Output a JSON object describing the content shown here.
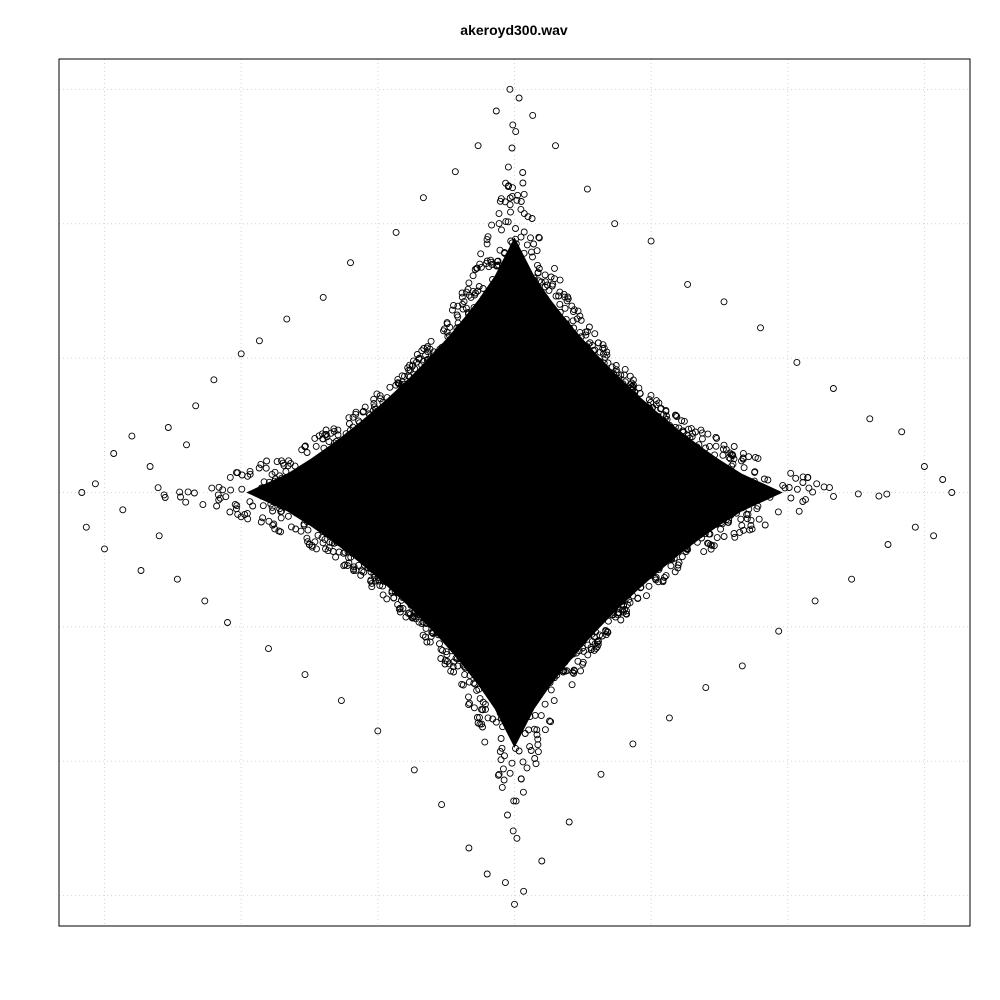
{
  "chart_data": {
    "type": "scatter",
    "title": "akeroyd300.wav",
    "xlabel": "",
    "ylabel": "",
    "xlim": [
      -1.0,
      1.0
    ],
    "ylim": [
      -1.0,
      1.0
    ],
    "grid": true,
    "grid_x": [
      -0.9,
      -0.6,
      -0.3,
      0.0,
      0.3,
      0.6,
      0.9
    ],
    "grid_y": [
      -0.93,
      -0.62,
      -0.31,
      0.0,
      0.31,
      0.62,
      0.93
    ],
    "marker": "open-circle",
    "series": [
      {
        "points": [
          [
            -0.94,
            -0.08
          ],
          [
            -0.92,
            0.02
          ],
          [
            -0.9,
            -0.13
          ],
          [
            -0.88,
            0.09
          ],
          [
            -0.86,
            -0.04
          ],
          [
            -0.84,
            0.13
          ],
          [
            -0.82,
            -0.18
          ],
          [
            -0.8,
            0.06
          ],
          [
            -0.78,
            -0.1
          ],
          [
            -0.76,
            0.15
          ],
          [
            -0.74,
            -0.2
          ],
          [
            -0.72,
            0.11
          ],
          [
            -0.7,
            0.2
          ],
          [
            -0.68,
            -0.25
          ],
          [
            -0.66,
            0.26
          ],
          [
            -0.63,
            -0.3
          ],
          [
            -0.6,
            0.32
          ],
          [
            -0.56,
            0.35
          ],
          [
            -0.54,
            -0.36
          ],
          [
            -0.5,
            0.4
          ],
          [
            -0.46,
            -0.42
          ],
          [
            -0.42,
            0.45
          ],
          [
            -0.38,
            -0.48
          ],
          [
            -0.36,
            0.53
          ],
          [
            -0.3,
            -0.55
          ],
          [
            -0.26,
            0.6
          ],
          [
            -0.22,
            -0.64
          ],
          [
            -0.2,
            0.68
          ],
          [
            -0.16,
            -0.72
          ],
          [
            -0.13,
            0.74
          ],
          [
            -0.1,
            -0.82
          ],
          [
            -0.08,
            0.8
          ],
          [
            -0.06,
            -0.88
          ],
          [
            -0.04,
            0.88
          ],
          [
            -0.02,
            -0.9
          ],
          [
            -0.01,
            0.93
          ],
          [
            0.0,
            -0.95
          ],
          [
            0.01,
            0.91
          ],
          [
            0.02,
            -0.92
          ],
          [
            0.04,
            0.87
          ],
          [
            0.06,
            -0.85
          ],
          [
            0.09,
            0.8
          ],
          [
            0.12,
            -0.76
          ],
          [
            0.16,
            0.7
          ],
          [
            0.19,
            -0.65
          ],
          [
            0.22,
            0.62
          ],
          [
            0.26,
            -0.58
          ],
          [
            0.3,
            0.58
          ],
          [
            0.34,
            -0.52
          ],
          [
            0.38,
            0.48
          ],
          [
            0.42,
            -0.45
          ],
          [
            0.46,
            0.44
          ],
          [
            0.5,
            -0.4
          ],
          [
            0.54,
            0.38
          ],
          [
            0.58,
            -0.32
          ],
          [
            0.62,
            0.3
          ],
          [
            0.66,
            -0.25
          ],
          [
            0.7,
            0.24
          ],
          [
            0.74,
            -0.2
          ],
          [
            0.78,
            0.17
          ],
          [
            0.82,
            -0.12
          ],
          [
            0.85,
            0.14
          ],
          [
            0.88,
            -0.08
          ],
          [
            0.9,
            0.06
          ],
          [
            0.92,
            -0.1
          ],
          [
            0.94,
            0.03
          ],
          [
            0.96,
            0.0
          ],
          [
            -0.95,
            0.0
          ]
        ]
      }
    ]
  }
}
